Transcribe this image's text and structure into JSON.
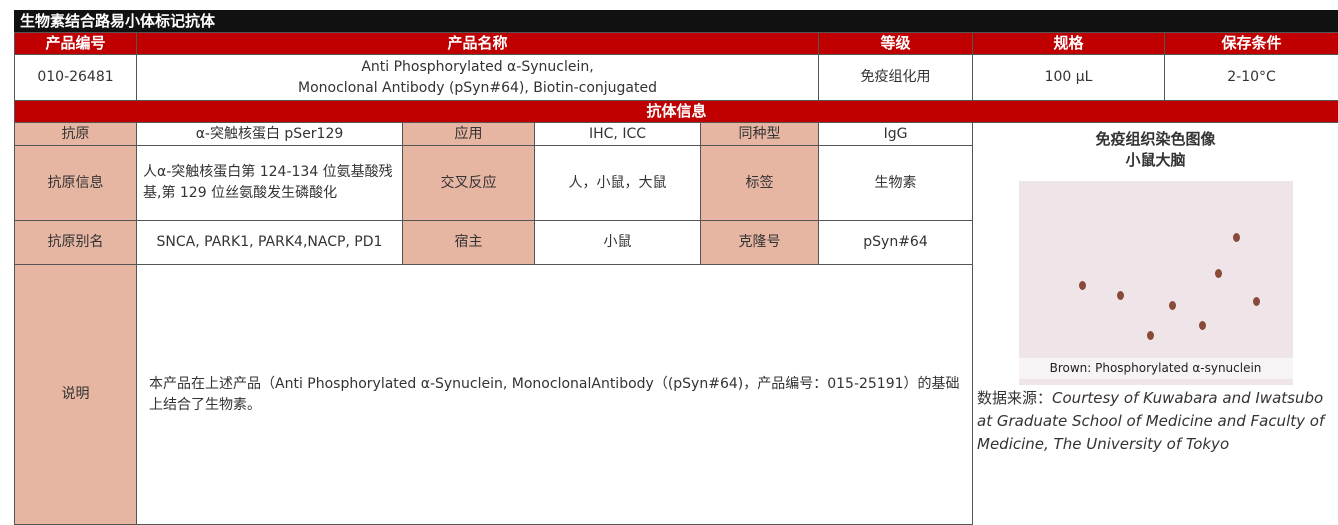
{
  "header": {
    "title": "生物素结合路易小体标记抗体"
  },
  "table": {
    "columns": [
      "产品编号",
      "产品名称",
      "等级",
      "规格",
      "保存条件"
    ],
    "product": {
      "code": "010-26481",
      "name": [
        "Anti Phosphorylated α-Synuclein,",
        "Monoclonal Antibody (pSyn#64), Biotin-conjugated"
      ],
      "grade": "免疫组化用",
      "size": "100 μL",
      "storage": "2-10°C"
    },
    "section": "抗体信息",
    "rows": [
      [
        "抗原",
        "α-突触核蛋白 pSer129",
        "应用",
        "IHC, ICC",
        "同种型",
        "IgG"
      ],
      [
        "抗原信息",
        "人α-突触核蛋白第 124-134 位氨基酸残基,第 129 位丝氨酸发生磷酸化",
        "交叉反应",
        "人，小鼠，大鼠",
        "标签",
        "生物素"
      ],
      [
        "抗原别名",
        "SNCA, PARK1, PARK4,NACP, PD1",
        "宿主",
        "小鼠",
        "克隆号",
        "pSyn#64"
      ]
    ],
    "description": {
      "label": "说明",
      "text": "本产品在上述产品（Anti Phosphorylated α-Synuclein, MonoclonalAntibody（(pSyn#64)，产品编号：015-25191）的基础上结合了生物素。"
    }
  },
  "figure": {
    "title": "免疫组织染色图像",
    "subtitle": "小鼠大脑",
    "image_caption": "Brown: Phosphorylated α-synuclein",
    "source_label": "数据来源：",
    "source": "Courtesy of Kuwabara and Iwatsubo at Graduate School of Medicine and Faculty of Medicine, The University of Tokyo"
  }
}
